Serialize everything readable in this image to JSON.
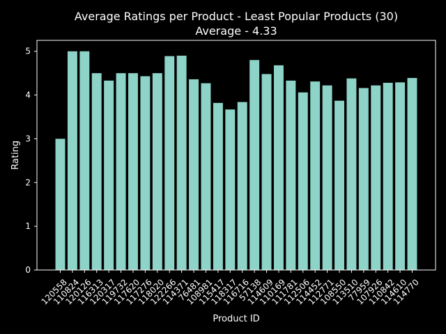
{
  "colors": {
    "background": "#000000",
    "bar": "#8dd3c7",
    "text": "#ffffff"
  },
  "chart_data": {
    "type": "bar",
    "title": "Average Ratings per Product - Least Popular Products (30)",
    "subtitle": "Average - 4.33",
    "xlabel": "Product ID",
    "ylabel": "Rating",
    "ylim": [
      0,
      5.25
    ],
    "yticks": [
      0,
      1,
      2,
      3,
      4,
      5
    ],
    "grid": false,
    "categories": [
      "120558",
      "110824",
      "120126",
      "116313",
      "120317",
      "119732",
      "117620",
      "117276",
      "118020",
      "122266",
      "114371",
      "76481",
      "108981",
      "115417",
      "118317",
      "116716",
      "57138",
      "114609",
      "110169",
      "111781",
      "112506",
      "114452",
      "112771",
      "108550",
      "113510",
      "77959",
      "107926",
      "110842",
      "114610",
      "114770"
    ],
    "values": [
      3.0,
      5.0,
      5.0,
      4.5,
      4.33,
      4.5,
      4.5,
      4.43,
      4.5,
      4.89,
      4.9,
      4.36,
      4.27,
      3.82,
      3.67,
      3.84,
      4.8,
      4.48,
      4.68,
      4.33,
      4.06,
      4.31,
      4.22,
      3.87,
      4.38,
      4.16,
      4.22,
      4.28,
      4.29,
      4.39
    ]
  }
}
